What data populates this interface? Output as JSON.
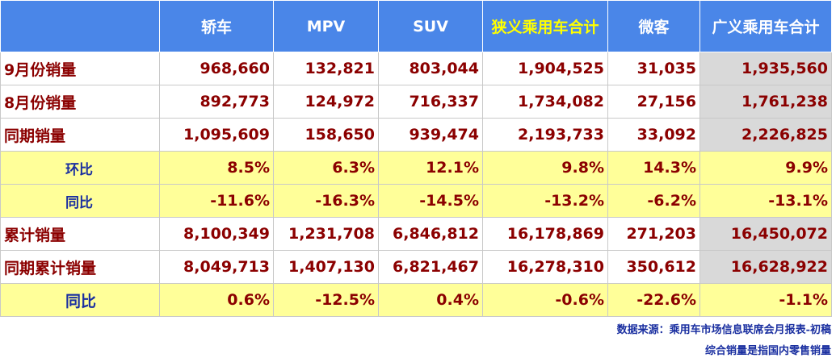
{
  "table": {
    "header": [
      "轿车",
      "MPV",
      "SUV",
      "狭义乘用车合计",
      "微客",
      "广义乘用车合计"
    ],
    "rows": [
      {
        "label": "9月份销量",
        "values": [
          "968,660",
          "132,821",
          "803,044",
          "1,904,525",
          "31,035",
          "1,935,560"
        ]
      },
      {
        "label": "8月份销量",
        "values": [
          "892,773",
          "124,972",
          "716,337",
          "1,734,082",
          "27,156",
          "1,761,238"
        ]
      },
      {
        "label": "同期销量",
        "values": [
          "1,095,609",
          "158,650",
          "939,474",
          "2,193,733",
          "33,092",
          "2,226,825"
        ]
      },
      {
        "label": "环比",
        "values": [
          "8.5%",
          "6.3%",
          "12.1%",
          "9.8%",
          "14.3%",
          "9.9%"
        ]
      },
      {
        "label": "同比",
        "values": [
          "-11.6%",
          "-16.3%",
          "-14.5%",
          "-13.2%",
          "-6.2%",
          "-13.1%"
        ]
      },
      {
        "label": "累计销量",
        "values": [
          "8,100,349",
          "1,231,708",
          "6,846,812",
          "16,178,869",
          "271,203",
          "16,450,072"
        ]
      },
      {
        "label": "同期累计销量",
        "values": [
          "8,049,713",
          "1,407,130",
          "6,821,467",
          "16,278,310",
          "350,612",
          "16,628,922"
        ]
      },
      {
        "label": "同比",
        "values": [
          "0.6%",
          "-12.5%",
          "0.4%",
          "-0.6%",
          "-22.6%",
          "-1.1%"
        ]
      }
    ],
    "notes": [
      "数据来源：乘用车市场信息联席会月报表-初稿",
      "综合销量是指国内零售销量"
    ]
  }
}
